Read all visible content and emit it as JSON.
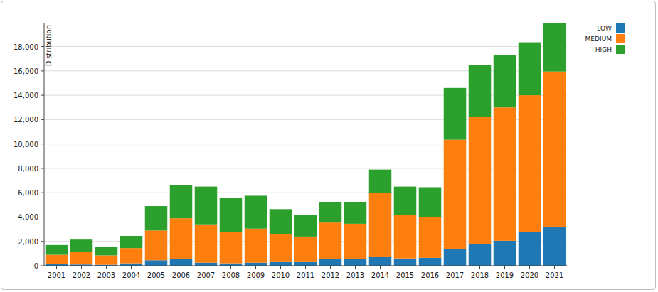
{
  "chart_data": {
    "type": "bar",
    "stacked": true,
    "grid": true,
    "legend": "right",
    "y_label": "Distribution",
    "categories": [
      "2001",
      "2002",
      "2003",
      "2004",
      "2005",
      "2006",
      "2007",
      "2008",
      "2009",
      "2010",
      "2011",
      "2012",
      "2013",
      "2014",
      "2015",
      "2016",
      "2017",
      "2018",
      "2019",
      "2020",
      "2021"
    ],
    "series": [
      {
        "name": "LOW",
        "color": "#1f77b4",
        "values": [
          150,
          100,
          80,
          200,
          450,
          550,
          250,
          200,
          250,
          300,
          300,
          550,
          550,
          700,
          600,
          650,
          1400,
          1800,
          2050,
          2800,
          3150
        ]
      },
      {
        "name": "MEDIUM",
        "color": "#ff7f0e",
        "values": [
          750,
          1050,
          770,
          1250,
          2450,
          3350,
          3150,
          2600,
          2800,
          2300,
          2100,
          3000,
          2900,
          5300,
          3550,
          3350,
          8950,
          10400,
          10950,
          11200,
          12800
        ]
      },
      {
        "name": "HIGH",
        "color": "#2ca02c",
        "values": [
          800,
          1000,
          700,
          1000,
          2000,
          2700,
          3100,
          2800,
          2700,
          2050,
          1750,
          1700,
          1750,
          1900,
          2350,
          2450,
          4250,
          4300,
          4300,
          4350,
          3950
        ]
      }
    ],
    "ylim": [
      0,
      19900
    ],
    "yticks": [
      0,
      {
        "value": 2000,
        "label": "2,000"
      },
      {
        "value": 4000,
        "label": "4,000"
      },
      {
        "value": 6000,
        "label": "6,000"
      },
      {
        "value": 8000,
        "label": "8,000"
      },
      {
        "value": 10000,
        "label": "10,000"
      },
      {
        "value": 12000,
        "label": "12,000"
      },
      {
        "value": 14000,
        "label": "14,000"
      },
      {
        "value": 16000,
        "label": "16,000"
      },
      {
        "value": 18000,
        "label": "18,000"
      }
    ]
  }
}
